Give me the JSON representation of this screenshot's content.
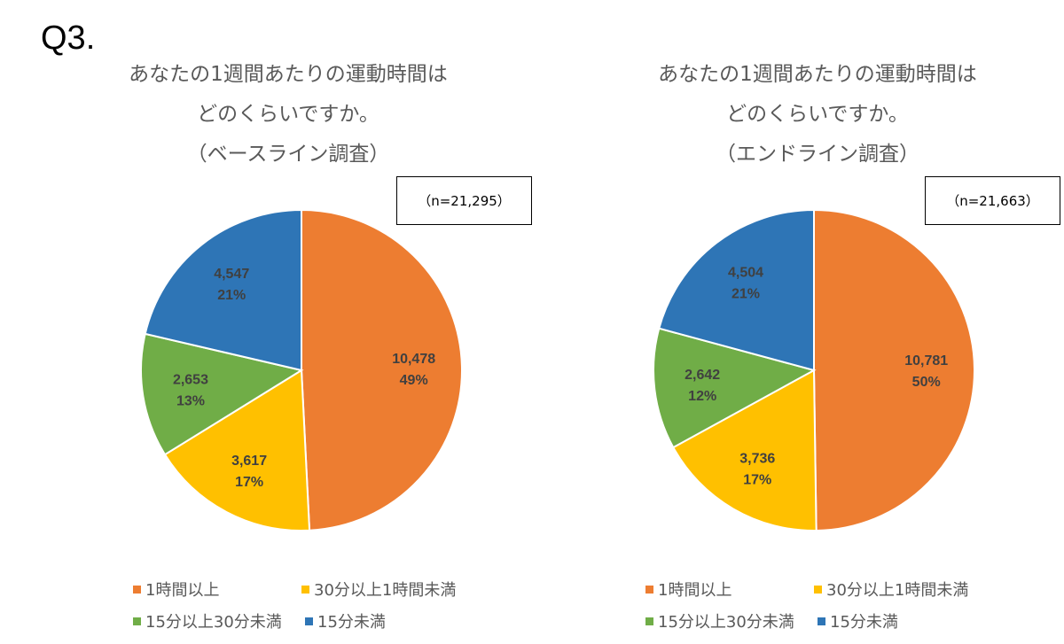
{
  "heading": "Q3.",
  "chart_data": [
    {
      "type": "pie",
      "title_lines": [
        "あなたの1週間あたりの運動時間は",
        "どのくらいですか。",
        "（ベースライン調査）"
      ],
      "n_label": "（n=21,295）",
      "categories": [
        "1時間以上",
        "30分以上1時間未満",
        "15分以上30分未満",
        "15分未満"
      ],
      "values": [
        10478,
        3617,
        2653,
        4547
      ],
      "value_labels": [
        "10,478",
        "3,617",
        "2,653",
        "4,547"
      ],
      "percent_labels": [
        "49%",
        "17%",
        "13%",
        "21%"
      ],
      "colors": [
        "#ED7D31",
        "#FFC000",
        "#70AD47",
        "#2E75B6"
      ],
      "legend_position": "bottom"
    },
    {
      "type": "pie",
      "title_lines": [
        "あなたの1週間あたりの運動時間は",
        "どのくらいですか。",
        "（エンドライン調査）"
      ],
      "n_label": "（n=21,663）",
      "categories": [
        "1時間以上",
        "30分以上1時間未満",
        "15分以上30分未満",
        "15分未満"
      ],
      "values": [
        10781,
        3736,
        2642,
        4504
      ],
      "value_labels": [
        "10,781",
        "3,736",
        "2,642",
        "4,504"
      ],
      "percent_labels": [
        "50%",
        "17%",
        "12%",
        "21%"
      ],
      "colors": [
        "#ED7D31",
        "#FFC000",
        "#70AD47",
        "#2E75B6"
      ],
      "legend_position": "bottom"
    }
  ]
}
